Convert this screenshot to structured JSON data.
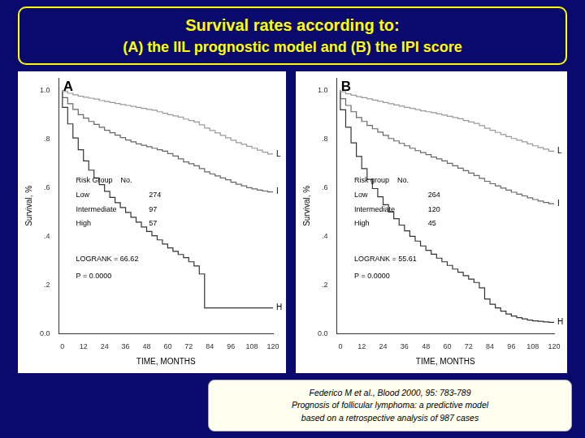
{
  "title": "Survival rates according to:",
  "subtitle": "(A) the IIL prognostic model and (B) the IPI score",
  "annotations": [
    "Federico M et al., Blood  2000, 95: 783-789\nPrognosis of follicular lymphoma: a predictive model\nbased on a retrospective analysis of 987 cases"
  ],
  "chart_data": [
    {
      "type": "line",
      "title": "A",
      "xlabel": "TIME, MONTHS",
      "ylabel": "Survival, %",
      "x": [
        0,
        3,
        6,
        9,
        12,
        15,
        18,
        21,
        24,
        27,
        30,
        33,
        36,
        39,
        42,
        45,
        48,
        51,
        54,
        57,
        60,
        63,
        66,
        69,
        72,
        75,
        78,
        81,
        84,
        87,
        90,
        93,
        96,
        99,
        102,
        105,
        108,
        111,
        114,
        117,
        120
      ],
      "series": [
        {
          "name": "L",
          "color": "#999999",
          "values": [
            1.0,
            0.995,
            0.988,
            0.982,
            0.976,
            0.972,
            0.968,
            0.964,
            0.958,
            0.954,
            0.95,
            0.946,
            0.942,
            0.938,
            0.934,
            0.93,
            0.926,
            0.922,
            0.918,
            0.912,
            0.906,
            0.9,
            0.895,
            0.89,
            0.882,
            0.876,
            0.87,
            0.858,
            0.845,
            0.835,
            0.825,
            0.815,
            0.805,
            0.795,
            0.785,
            0.778,
            0.77,
            0.762,
            0.754,
            0.746,
            0.738
          ]
        },
        {
          "name": "I",
          "color": "#666666",
          "values": [
            1.0,
            0.97,
            0.945,
            0.922,
            0.9,
            0.886,
            0.872,
            0.86,
            0.848,
            0.836,
            0.826,
            0.816,
            0.806,
            0.796,
            0.788,
            0.78,
            0.774,
            0.768,
            0.762,
            0.756,
            0.75,
            0.74,
            0.73,
            0.718,
            0.706,
            0.698,
            0.69,
            0.678,
            0.665,
            0.656,
            0.648,
            0.64,
            0.632,
            0.622,
            0.614,
            0.607,
            0.6,
            0.595,
            0.59,
            0.586,
            0.582
          ]
        },
        {
          "name": "H",
          "color": "#333333",
          "values": [
            1.0,
            0.93,
            0.862,
            0.804,
            0.756,
            0.71,
            0.672,
            0.64,
            0.612,
            0.585,
            0.56,
            0.538,
            0.518,
            0.498,
            0.478,
            0.458,
            0.438,
            0.42,
            0.402,
            0.385,
            0.368,
            0.352,
            0.338,
            0.325,
            0.312,
            0.295,
            0.278,
            0.245,
            0.105,
            0.105,
            0.105,
            0.105,
            0.105,
            0.105,
            0.105,
            0.105,
            0.105,
            0.105,
            0.105,
            0.105,
            0.105
          ]
        }
      ],
      "xlim": [
        -2,
        120
      ],
      "xticks": [
        0,
        12,
        24,
        36,
        48,
        60,
        72,
        84,
        96,
        108,
        120
      ],
      "ylim": [
        0,
        1.05
      ],
      "yticks": [
        {
          "value": 0.0,
          "label": "0.0"
        },
        {
          "value": 0.2,
          "label": ".2"
        },
        {
          "value": 0.4,
          "label": ".4"
        },
        {
          "value": 0.6,
          "label": ".6"
        },
        {
          "value": 0.8,
          "label": ".8"
        },
        {
          "value": 1.0,
          "label": "1.0"
        }
      ],
      "grid": false,
      "line_style": "step",
      "annotations": [
        [
          "Risk Group    No."
        ],
        [
          "Low",
          "274"
        ],
        [
          "Intermediate",
          "97"
        ],
        [
          "High",
          "57"
        ],
        [
          "LOGRANK = 66.62"
        ],
        [
          "P = 0.0000"
        ]
      ]
    },
    {
      "type": "line",
      "title": "B",
      "xlabel": "TIME, MONTHS",
      "ylabel": "Survival, %",
      "x": [
        0,
        3,
        6,
        9,
        12,
        15,
        18,
        21,
        24,
        27,
        30,
        33,
        36,
        39,
        42,
        45,
        48,
        51,
        54,
        57,
        60,
        63,
        66,
        69,
        72,
        75,
        78,
        81,
        84,
        87,
        90,
        93,
        96,
        99,
        102,
        105,
        108,
        111,
        114,
        117,
        120
      ],
      "series": [
        {
          "name": "L",
          "color": "#999999",
          "values": [
            1.0,
            0.994,
            0.986,
            0.98,
            0.974,
            0.97,
            0.965,
            0.96,
            0.955,
            0.95,
            0.945,
            0.94,
            0.935,
            0.93,
            0.926,
            0.921,
            0.916,
            0.912,
            0.908,
            0.903,
            0.898,
            0.893,
            0.888,
            0.883,
            0.876,
            0.87,
            0.864,
            0.855,
            0.844,
            0.836,
            0.827,
            0.818,
            0.81,
            0.802,
            0.795,
            0.788,
            0.78,
            0.772,
            0.765,
            0.758,
            0.75
          ]
        },
        {
          "name": "I",
          "color": "#666666",
          "values": [
            1.0,
            0.966,
            0.938,
            0.912,
            0.888,
            0.872,
            0.856,
            0.842,
            0.828,
            0.815,
            0.802,
            0.792,
            0.782,
            0.772,
            0.762,
            0.752,
            0.744,
            0.736,
            0.726,
            0.718,
            0.71,
            0.7,
            0.69,
            0.68,
            0.67,
            0.66,
            0.65,
            0.638,
            0.626,
            0.616,
            0.607,
            0.598,
            0.59,
            0.581,
            0.573,
            0.566,
            0.558,
            0.551,
            0.545,
            0.539,
            0.534
          ]
        },
        {
          "name": "H",
          "color": "#333333",
          "values": [
            1.0,
            0.92,
            0.848,
            0.784,
            0.728,
            0.678,
            0.634,
            0.596,
            0.562,
            0.53,
            0.5,
            0.472,
            0.446,
            0.422,
            0.4,
            0.38,
            0.36,
            0.342,
            0.326,
            0.31,
            0.295,
            0.28,
            0.265,
            0.252,
            0.238,
            0.224,
            0.21,
            0.188,
            0.142,
            0.12,
            0.105,
            0.092,
            0.08,
            0.072,
            0.065,
            0.06,
            0.055,
            0.052,
            0.05,
            0.048,
            0.046
          ]
        }
      ],
      "xlim": [
        -2,
        120
      ],
      "xticks": [
        0,
        12,
        24,
        36,
        48,
        60,
        72,
        84,
        96,
        108,
        120
      ],
      "ylim": [
        0,
        1.05
      ],
      "yticks": [
        {
          "value": 0.0,
          "label": "0.0"
        },
        {
          "value": 0.2,
          "label": ".2"
        },
        {
          "value": 0.4,
          "label": ".4"
        },
        {
          "value": 0.6,
          "label": ".6"
        },
        {
          "value": 0.8,
          "label": ".8"
        },
        {
          "value": 1.0,
          "label": "1.0"
        }
      ],
      "grid": false,
      "line_style": "step",
      "annotations": [
        [
          "Risk group    No."
        ],
        [
          "Low",
          "264"
        ],
        [
          "Intermediate",
          "120"
        ],
        [
          "High",
          "45"
        ],
        [
          "LOGRANK = 55.61"
        ],
        [
          "P = 0.0000"
        ]
      ]
    }
  ]
}
